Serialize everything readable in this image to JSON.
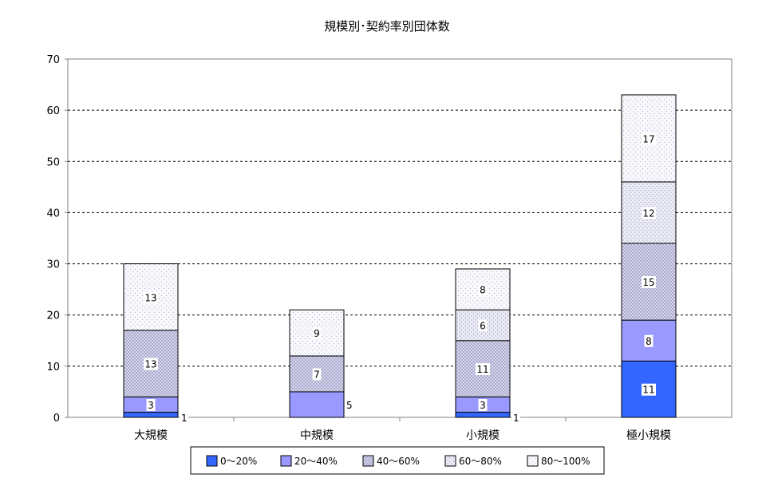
{
  "chart_data": {
    "type": "bar",
    "stacked": true,
    "title": "規模別･契約率別団体数",
    "xlabel": "",
    "ylabel": "",
    "ylim": [
      0,
      70
    ],
    "yticks": [
      0,
      10,
      20,
      30,
      40,
      50,
      60,
      70
    ],
    "grid": "horizontal dashed",
    "legend_position": "bottom",
    "categories": [
      "大規模",
      "中規模",
      "小規模",
      "極小規模"
    ],
    "series": [
      {
        "name": "0～20%",
        "values": [
          1,
          0,
          1,
          11
        ],
        "color": "#3366ff",
        "pattern": "solid"
      },
      {
        "name": "20～40%",
        "values": [
          3,
          5,
          3,
          8
        ],
        "color": "#9999ff",
        "pattern": "solid"
      },
      {
        "name": "40～60%",
        "values": [
          13,
          7,
          11,
          15
        ],
        "color": "#ccccee",
        "pattern": "dense-dots"
      },
      {
        "name": "60～80%",
        "values": [
          0,
          0,
          6,
          12
        ],
        "color": "#e6e6f4",
        "pattern": "dots"
      },
      {
        "name": "80～100%",
        "values": [
          13,
          9,
          8,
          17
        ],
        "color": "#f4f4fb",
        "pattern": "sparse-dots"
      }
    ]
  }
}
